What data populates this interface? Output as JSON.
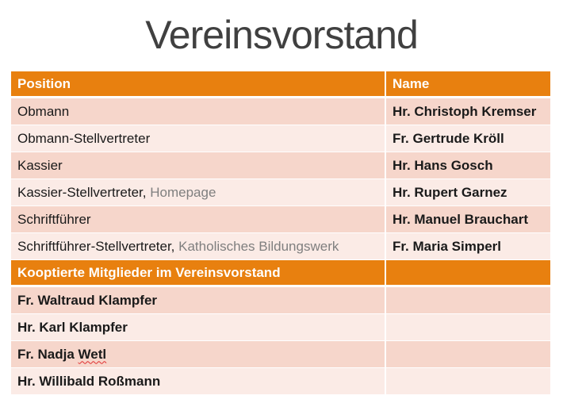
{
  "title": "Vereinsvorstand",
  "board_header": {
    "position": "Position",
    "name": "Name"
  },
  "board_rows": [
    {
      "position": "Obmann",
      "note": "",
      "name": "Hr. Christoph Kremser"
    },
    {
      "position": "Obmann-Stellvertreter",
      "note": "",
      "name": "Fr. Gertrude Kröll"
    },
    {
      "position": "Kassier",
      "note": "",
      "name": "Hr. Hans Gosch"
    },
    {
      "position": "Kassier-Stellvertreter,",
      "note": "Homepage",
      "name": "Hr. Rupert Garnez"
    },
    {
      "position": "Schriftführer",
      "note": "",
      "name": "Hr. Manuel Brauchart"
    },
    {
      "position": "Schriftführer-Stellvertreter,",
      "note": "Katholisches Bildungswerk",
      "name": "Fr. Maria Simperl"
    }
  ],
  "coopted_header": "Kooptierte Mitglieder im Vereinsvorstand",
  "coopted_members": {
    "m0": {
      "first": "Fr. Waltraud Klampfer",
      "last": ""
    },
    "m1": {
      "first": "Hr. Karl Klampfer",
      "last": ""
    },
    "m2": {
      "first": "Fr. Nadja ",
      "last": "Wetl"
    },
    "m3": {
      "first": "Hr. Willibald Roßmann",
      "last": ""
    }
  },
  "colors": {
    "header": "#e8800f",
    "row_dark": "#f6d6cb",
    "row_light": "#fbebe6",
    "muted_text": "#7f7f7f"
  }
}
